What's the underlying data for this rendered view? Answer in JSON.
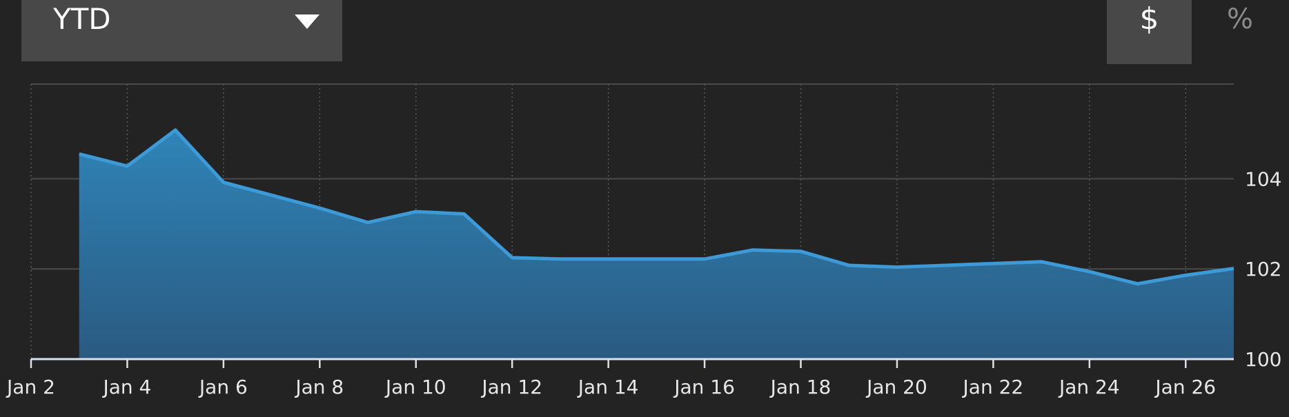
{
  "controls": {
    "range_label": "YTD",
    "dollar_label": "$",
    "percent_label": "%"
  },
  "colors": {
    "line": "#3d9ad6",
    "fill_top": "#2f84b8",
    "fill_bottom": "#2a5a80",
    "grid": "#4a4a4a",
    "axis": "#d8e3ee"
  },
  "chart_data": {
    "type": "area",
    "title": "",
    "xlabel": "",
    "ylabel": "",
    "x_ticks": [
      "Jan 2",
      "Jan 4",
      "Jan 6",
      "Jan 8",
      "Jan 10",
      "Jan 12",
      "Jan 14",
      "Jan 16",
      "Jan 18",
      "Jan 20",
      "Jan 22",
      "Jan 24",
      "Jan 26"
    ],
    "y_ticks": [
      "100",
      "102",
      "104"
    ],
    "xlim": [
      "Jan 2",
      "Jan 27"
    ],
    "ylim": [
      100,
      106.1
    ],
    "grid": "on",
    "y_axis_side": "right",
    "x": [
      "Jan 3",
      "Jan 4",
      "Jan 5",
      "Jan 6",
      "Jan 8",
      "Jan 9",
      "Jan 10",
      "Jan 11",
      "Jan 12",
      "Jan 13",
      "Jan 14",
      "Jan 15",
      "Jan 16",
      "Jan 17",
      "Jan 18",
      "Jan 19",
      "Jan 20",
      "Jan 21",
      "Jan 22",
      "Jan 23",
      "Jan 24",
      "Jan 25",
      "Jan 26",
      "Jan 27"
    ],
    "values": [
      104.55,
      104.28,
      105.08,
      103.92,
      103.35,
      103.03,
      103.27,
      103.22,
      102.25,
      102.22,
      102.22,
      102.22,
      102.22,
      102.42,
      102.39,
      102.08,
      102.04,
      102.08,
      102.12,
      102.16,
      101.94,
      101.67,
      101.86,
      102.01
    ]
  }
}
